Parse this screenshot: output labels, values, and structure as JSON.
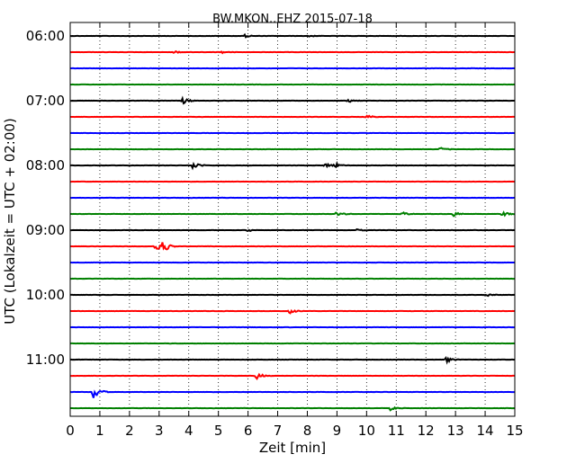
{
  "chart_data": {
    "type": "line",
    "title": "BW.MKON..EHZ 2015-07-18",
    "xlabel": "Zeit  [min]",
    "ylabel": "UTC (Lokalzeit = UTC + 02:00)",
    "xlim": [
      0,
      15
    ],
    "x_ticks": [
      "0",
      "1",
      "2",
      "3",
      "4",
      "5",
      "6",
      "7",
      "8",
      "9",
      "10",
      "11",
      "12",
      "13",
      "14",
      "15"
    ],
    "y_tick_labels": [
      "06:00",
      "07:00",
      "08:00",
      "09:00",
      "10:00",
      "11:00"
    ],
    "trace_interval_min": 15,
    "trace_start_times": [
      "06:00",
      "06:15",
      "06:30",
      "06:45",
      "07:00",
      "07:15",
      "07:30",
      "07:45",
      "08:00",
      "08:15",
      "08:30",
      "08:45",
      "09:00",
      "09:15",
      "09:30",
      "09:45",
      "10:00",
      "10:15",
      "10:30",
      "10:45",
      "11:00",
      "11:15",
      "11:30",
      "11:45"
    ],
    "color_cycle": [
      "#000000",
      "#ff0000",
      "#0000ff",
      "#008000"
    ],
    "grid": "vertical dotted",
    "events": [
      {
        "trace": 0,
        "t": 5.9,
        "amp": 0.15
      },
      {
        "trace": 0,
        "t": 8.0,
        "amp": 0.12
      },
      {
        "trace": 1,
        "t": 3.5,
        "amp": 0.15
      },
      {
        "trace": 1,
        "t": 5.1,
        "amp": 0.12
      },
      {
        "trace": 4,
        "t": 3.8,
        "amp": 0.35
      },
      {
        "trace": 4,
        "t": 9.4,
        "amp": 0.18
      },
      {
        "trace": 5,
        "t": 10.0,
        "amp": 0.2
      },
      {
        "trace": 7,
        "t": 12.5,
        "amp": 0.2
      },
      {
        "trace": 8,
        "t": 4.15,
        "amp": 0.55
      },
      {
        "trace": 8,
        "t": 8.6,
        "amp": 0.3
      },
      {
        "trace": 8,
        "t": 8.95,
        "amp": 0.28
      },
      {
        "trace": 11,
        "t": 9.0,
        "amp": 0.28
      },
      {
        "trace": 11,
        "t": 11.2,
        "amp": 0.25
      },
      {
        "trace": 11,
        "t": 12.9,
        "amp": 0.35
      },
      {
        "trace": 11,
        "t": 14.6,
        "amp": 0.3
      },
      {
        "trace": 12,
        "t": 6.0,
        "amp": 0.2
      },
      {
        "trace": 12,
        "t": 9.7,
        "amp": 0.15
      },
      {
        "trace": 13,
        "t": 2.9,
        "amp": 0.85
      },
      {
        "trace": 13,
        "t": 3.15,
        "amp": 0.65
      },
      {
        "trace": 17,
        "t": 7.4,
        "amp": 0.3
      },
      {
        "trace": 16,
        "t": 14.0,
        "amp": 0.25
      },
      {
        "trace": 20,
        "t": 12.7,
        "amp": 0.3
      },
      {
        "trace": 21,
        "t": 6.3,
        "amp": 0.35
      },
      {
        "trace": 22,
        "t": 0.8,
        "amp": 1.0
      },
      {
        "trace": 23,
        "t": 10.8,
        "amp": 0.22
      }
    ]
  }
}
